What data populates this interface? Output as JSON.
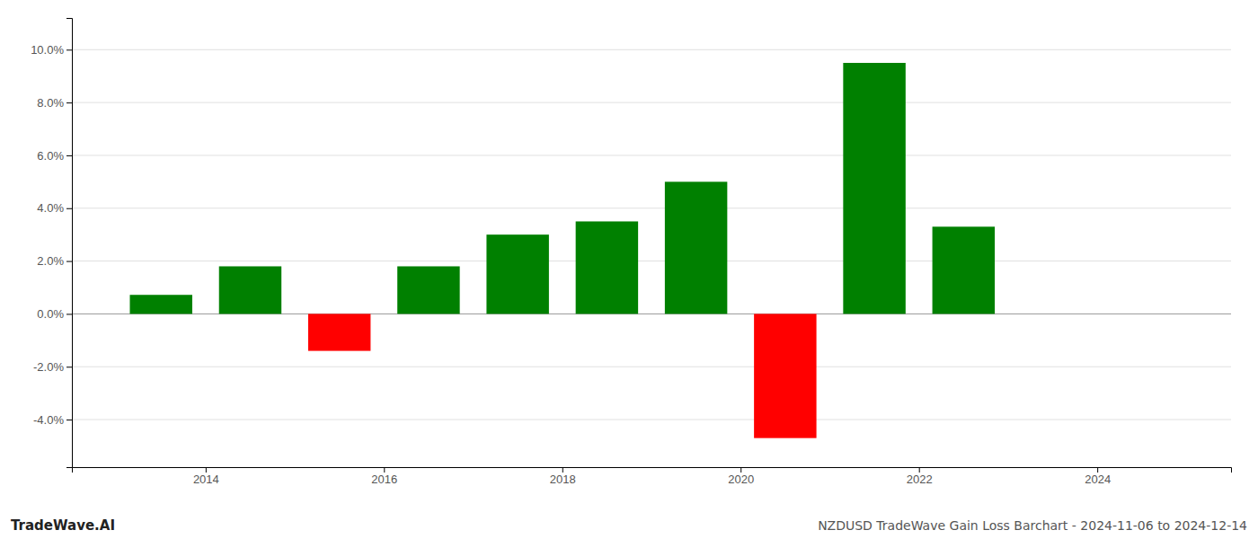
{
  "chart_data": {
    "type": "bar",
    "title": "NZDUSD TradeWave Gain Loss Barchart - 2024-11-06 to 2024-12-14",
    "annotations": [
      "TradeWave.AI"
    ],
    "x": [
      2013.5,
      2014.5,
      2015.5,
      2016.5,
      2017.5,
      2018.5,
      2019.5,
      2020.5,
      2021.5,
      2022.5
    ],
    "values": [
      0.0072,
      0.018,
      -0.014,
      0.018,
      0.03,
      0.035,
      0.05,
      -0.047,
      0.095,
      0.033
    ],
    "colors": [
      "#008000",
      "#008000",
      "#ff0000",
      "#008000",
      "#008000",
      "#008000",
      "#008000",
      "#ff0000",
      "#008000",
      "#008000"
    ],
    "xlim": [
      2012.5,
      2025.5
    ],
    "ylim": [
      -0.058,
      0.112
    ],
    "xticks": [
      2014,
      2016,
      2018,
      2020,
      2022,
      2024
    ],
    "yticks": [
      {
        "value": -0.04,
        "label": "-4.0%"
      },
      {
        "value": -0.02,
        "label": "-2.0%"
      },
      {
        "value": 0.0,
        "label": "0.0%"
      },
      {
        "value": 0.02,
        "label": "2.0%"
      },
      {
        "value": 0.04,
        "label": "4.0%"
      },
      {
        "value": 0.06,
        "label": "6.0%"
      },
      {
        "value": 0.08,
        "label": "8.0%"
      },
      {
        "value": 0.1,
        "label": "10.0%"
      }
    ],
    "grid": true
  }
}
